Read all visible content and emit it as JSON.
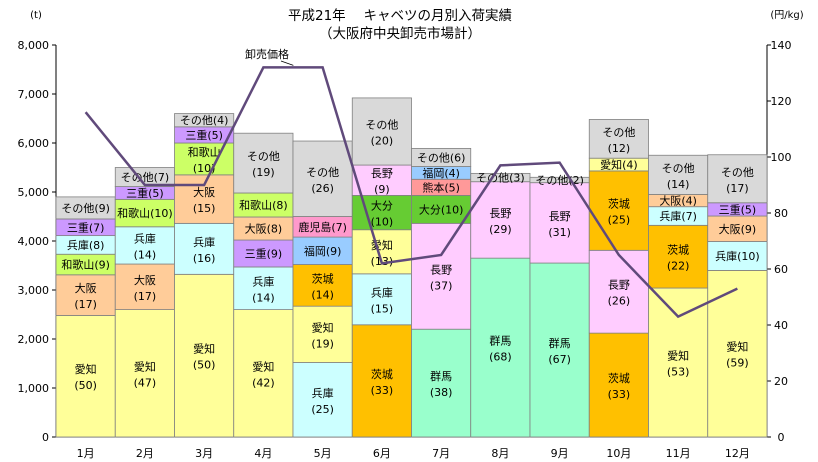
{
  "title": "平成21年　 キャベツの月別入荷実績",
  "subtitle": "（大阪府中央卸売市場計）",
  "left_unit": "(t)",
  "right_unit": "(円/kg)",
  "price_label": "卸売価格",
  "chart_data": {
    "type": "bar",
    "stacked": true,
    "categories": [
      "1月",
      "2月",
      "3月",
      "4月",
      "5月",
      "6月",
      "7月",
      "8月",
      "9月",
      "10月",
      "11月",
      "12月"
    ],
    "left_axis": {
      "min": 0,
      "max": 8000,
      "step": 1000,
      "ticks": [
        "0",
        "1,000",
        "2,000",
        "3,000",
        "4,000",
        "5,000",
        "6,000",
        "7,000",
        "8,000"
      ]
    },
    "right_axis": {
      "min": 0,
      "max": 140,
      "step": 20,
      "ticks": [
        "0",
        "20",
        "40",
        "60",
        "80",
        "100",
        "120",
        "140"
      ]
    },
    "colors": {
      "愛知": "#ffff99",
      "兵庫": "#ccffff",
      "大阪": "#ffcc99",
      "和歌山": "#ccff66",
      "三重": "#cc99ff",
      "その他": "#d9d9d9",
      "群馬": "#99ffcc",
      "長野": "#ffccff",
      "茨城": "#ffc000",
      "福岡": "#99ccff",
      "鹿児島": "#ff99cc",
      "大分": "#66cc33",
      "熊本": "#ff9999"
    },
    "months": [
      {
        "segments": [
          {
            "name": "愛知",
            "value": 2480,
            "pct": "(50)"
          },
          {
            "name": "大阪",
            "value": 830,
            "pct": "(17)"
          },
          {
            "name": "和歌山",
            "value": 420,
            "pct": "(9)"
          },
          {
            "name": "兵庫",
            "value": 380,
            "pct": "(8)"
          },
          {
            "name": "三重",
            "value": 340,
            "pct": "(7)"
          },
          {
            "name": "その他",
            "value": 450,
            "pct": "(9)"
          }
        ]
      },
      {
        "segments": [
          {
            "name": "愛知",
            "value": 2600,
            "pct": "(47)"
          },
          {
            "name": "大阪",
            "value": 930,
            "pct": "(17)"
          },
          {
            "name": "兵庫",
            "value": 760,
            "pct": "(14)"
          },
          {
            "name": "和歌山",
            "value": 560,
            "pct": "(10)"
          },
          {
            "name": "三重",
            "value": 260,
            "pct": "(5)"
          },
          {
            "name": "その他",
            "value": 390,
            "pct": "(7)"
          }
        ]
      },
      {
        "segments": [
          {
            "name": "愛知",
            "value": 3320,
            "pct": "(50)"
          },
          {
            "name": "兵庫",
            "value": 1040,
            "pct": "(16)"
          },
          {
            "name": "大阪",
            "value": 990,
            "pct": "(15)"
          },
          {
            "name": "和歌山",
            "value": 650,
            "pct": "(10)"
          },
          {
            "name": "三重",
            "value": 330,
            "pct": "(5)"
          },
          {
            "name": "その他",
            "value": 270,
            "pct": "(4)"
          }
        ]
      },
      {
        "segments": [
          {
            "name": "愛知",
            "value": 2600,
            "pct": "(42)"
          },
          {
            "name": "兵庫",
            "value": 870,
            "pct": "(14)"
          },
          {
            "name": "三重",
            "value": 550,
            "pct": "(9)"
          },
          {
            "name": "大阪",
            "value": 470,
            "pct": "(8)"
          },
          {
            "name": "和歌山",
            "value": 490,
            "pct": "(8)"
          },
          {
            "name": "その他",
            "value": 1220,
            "pct": "(19)"
          }
        ]
      },
      {
        "segments": [
          {
            "name": "兵庫",
            "value": 1520,
            "pct": "(25)"
          },
          {
            "name": "愛知",
            "value": 1150,
            "pct": "(19)"
          },
          {
            "name": "茨城",
            "value": 850,
            "pct": "(14)"
          },
          {
            "name": "福岡",
            "value": 560,
            "pct": "(9)"
          },
          {
            "name": "鹿児島",
            "value": 420,
            "pct": "(7)"
          },
          {
            "name": "その他",
            "value": 1540,
            "pct": "(26)"
          }
        ]
      },
      {
        "segments": [
          {
            "name": "茨城",
            "value": 2290,
            "pct": "(33)"
          },
          {
            "name": "兵庫",
            "value": 1040,
            "pct": "(15)"
          },
          {
            "name": "愛知",
            "value": 900,
            "pct": "(13)"
          },
          {
            "name": "大分",
            "value": 700,
            "pct": "(10)"
          },
          {
            "name": "長野",
            "value": 620,
            "pct": "(9)"
          },
          {
            "name": "その他",
            "value": 1370,
            "pct": "(20)"
          }
        ]
      },
      {
        "segments": [
          {
            "name": "群馬",
            "value": 2200,
            "pct": "(38)"
          },
          {
            "name": "長野",
            "value": 2160,
            "pct": "(37)"
          },
          {
            "name": "大分",
            "value": 570,
            "pct": "(10)"
          },
          {
            "name": "熊本",
            "value": 330,
            "pct": "(5)"
          },
          {
            "name": "福岡",
            "value": 260,
            "pct": "(4)"
          },
          {
            "name": "その他",
            "value": 370,
            "pct": "(6)"
          }
        ]
      },
      {
        "segments": [
          {
            "name": "群馬",
            "value": 3650,
            "pct": "(68)"
          },
          {
            "name": "長野",
            "value": 1560,
            "pct": "(29)"
          },
          {
            "name": "その他",
            "value": 170,
            "pct": "(3)"
          }
        ]
      },
      {
        "segments": [
          {
            "name": "群馬",
            "value": 3550,
            "pct": "(67)"
          },
          {
            "name": "長野",
            "value": 1640,
            "pct": "(31)"
          },
          {
            "name": "その他",
            "value": 110,
            "pct": "(2)"
          }
        ]
      },
      {
        "segments": [
          {
            "name": "茨城",
            "value": 2120,
            "pct": "(33)"
          },
          {
            "name": "長野",
            "value": 1690,
            "pct": "(26)"
          },
          {
            "name": "茨城",
            "value": 1620,
            "pct": "(25)"
          },
          {
            "name": "愛知",
            "value": 260,
            "pct": "(4)"
          },
          {
            "name": "その他",
            "value": 790,
            "pct": "(12)"
          }
        ]
      },
      {
        "segments": [
          {
            "name": "愛知",
            "value": 3040,
            "pct": "(53)"
          },
          {
            "name": "茨城",
            "value": 1280,
            "pct": "(22)"
          },
          {
            "name": "兵庫",
            "value": 380,
            "pct": "(7)"
          },
          {
            "name": "大阪",
            "value": 250,
            "pct": "(4)"
          },
          {
            "name": "その他",
            "value": 800,
            "pct": "(14)"
          }
        ]
      },
      {
        "segments": [
          {
            "name": "愛知",
            "value": 3400,
            "pct": "(59)"
          },
          {
            "name": "兵庫",
            "value": 590,
            "pct": "(10)"
          },
          {
            "name": "大阪",
            "value": 520,
            "pct": "(9)"
          },
          {
            "name": "三重",
            "value": 270,
            "pct": "(5)"
          },
          {
            "name": "その他",
            "value": 980,
            "pct": "(17)"
          }
        ]
      }
    ],
    "price_series": {
      "name": "卸売価格",
      "values": [
        116,
        90,
        90,
        132,
        132,
        62,
        65,
        97,
        98,
        65,
        43,
        53
      ]
    }
  }
}
